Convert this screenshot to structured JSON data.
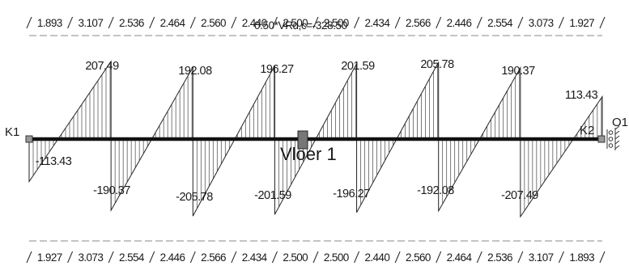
{
  "top_dimensions": [
    "1.893",
    "3.107",
    "2.536",
    "2.464",
    "2.560",
    "2.440",
    "2.500",
    "2.500",
    "2.434",
    "2.566",
    "2.446",
    "2.554",
    "3.073",
    "1.927"
  ],
  "bottom_dimensions": [
    "1.927",
    "3.073",
    "2.554",
    "2.446",
    "2.566",
    "2.434",
    "2.500",
    "2.500",
    "2.440",
    "2.560",
    "2.464",
    "2.536",
    "3.107",
    "1.893"
  ],
  "overlap_label": "0.50*VRd,c=-328.50",
  "beam_label": "Vloer 1",
  "support_left": "K1",
  "support_right_1": "K2",
  "support_right_2": "O1",
  "positive_values": [
    "207.49",
    "192.08",
    "196.27",
    "201.59",
    "205.78",
    "190.37",
    "113.43"
  ],
  "negative_values": [
    "-113.43",
    "-190.37",
    "-205.78",
    "-201.59",
    "-196.27",
    "-192.08",
    "-207.49"
  ],
  "shear": {
    "segments": [
      {
        "start": -113.43,
        "end": 207.49
      },
      {
        "start": -190.37,
        "end": 192.08
      },
      {
        "start": -205.78,
        "end": 196.27
      },
      {
        "start": -201.59,
        "end": 201.59
      },
      {
        "start": -196.27,
        "end": 205.78
      },
      {
        "start": -192.08,
        "end": 190.37
      },
      {
        "start": -207.49,
        "end": 113.43
      }
    ]
  }
}
